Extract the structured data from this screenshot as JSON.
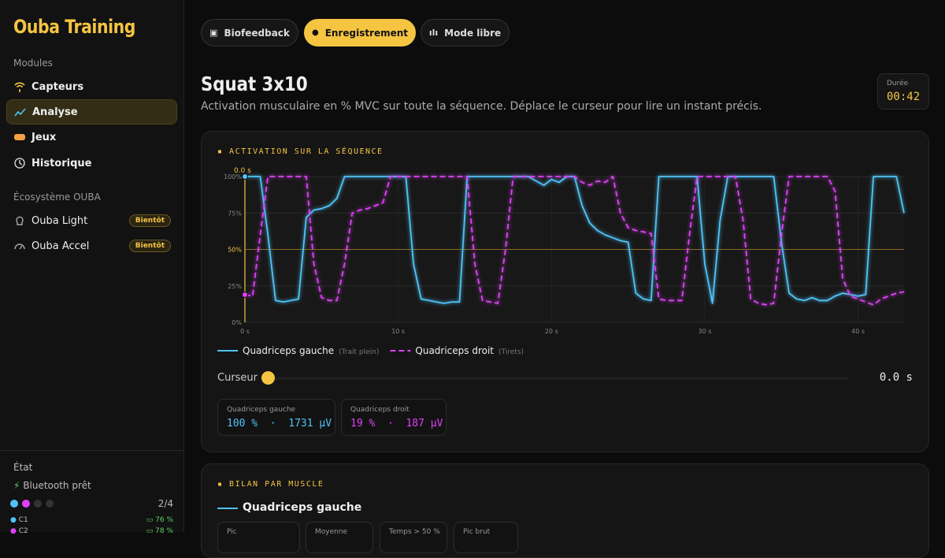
{
  "sidebar": {
    "brand": "Ouba Training",
    "modules_label": "Modules",
    "modules": [
      "Capteurs",
      "Analyse",
      "Jeux",
      "Historique"
    ],
    "ecosystem_label": "Écosystème OUBA",
    "ecosystem": [
      {
        "label": "Ouba Light",
        "badge": "Bientôt"
      },
      {
        "label": "Ouba Accel",
        "badge": "Bientôt"
      }
    ],
    "status": {
      "label": "État",
      "bluetooth": "Bluetooth prêt",
      "count": "2/4",
      "devices": [
        {
          "name": "C1",
          "battery": "76 %"
        },
        {
          "name": "C2",
          "battery": "78 %"
        }
      ]
    }
  },
  "tabs": [
    "Biofeedback",
    "Enregistrement",
    "Mode libre"
  ],
  "header": {
    "title": "Squat 3x10",
    "description": "Activation musculaire en % MVC sur toute la séquence. Déplace le curseur pour lire un instant précis.",
    "duration_label": "Durée",
    "duration": "00:42"
  },
  "chart_data": {
    "type": "line",
    "title": "ACTIVATION SUR LA SÉQUENCE",
    "annotation": "0.0 s",
    "cursor_x": 0,
    "threshold": 50,
    "grid": true,
    "xlim": [
      0,
      43
    ],
    "ylim": [
      0,
      100
    ],
    "xticks": [
      {
        "value": 0,
        "label": "0 s"
      },
      {
        "value": 10,
        "label": "10 s"
      },
      {
        "value": 20,
        "label": "20 s"
      },
      {
        "value": 30,
        "label": "30 s"
      },
      {
        "value": 40,
        "label": "40 s"
      }
    ],
    "yticks": [
      {
        "value": 0,
        "label": "0%"
      },
      {
        "value": 25,
        "label": "25%"
      },
      {
        "value": 50,
        "label": "50%"
      },
      {
        "value": 75,
        "label": "75%"
      },
      {
        "value": 100,
        "label": "100%"
      }
    ],
    "x": [
      0,
      0.5,
      1,
      1.5,
      2,
      2.5,
      3,
      3.5,
      4,
      4.5,
      5,
      5.5,
      6,
      6.5,
      7,
      7.5,
      8,
      8.5,
      9,
      9.5,
      10,
      10.5,
      11,
      11.5,
      12,
      12.5,
      13,
      13.5,
      14,
      14.5,
      15,
      15.5,
      16,
      16.5,
      17,
      17.5,
      18,
      18.5,
      19,
      19.5,
      20,
      20.5,
      21,
      21.5,
      22,
      22.5,
      23,
      23.5,
      24,
      24.5,
      25,
      25.5,
      26,
      26.5,
      27,
      27.5,
      28,
      28.5,
      29,
      29.5,
      30,
      30.5,
      31,
      31.5,
      32,
      32.5,
      33,
      33.5,
      34,
      34.5,
      35,
      35.5,
      36,
      36.5,
      37,
      37.5,
      38,
      38.5,
      39,
      39.5,
      40,
      40.5,
      41,
      41.5,
      42,
      42.5,
      43
    ],
    "series": [
      {
        "name": "Quadriceps gauche",
        "note": "(Trait plein)",
        "color": "#4fc3f7",
        "dashed": false,
        "values": [
          100,
          100,
          100,
          60,
          15,
          14,
          15,
          16,
          72,
          77,
          78,
          80,
          85,
          100,
          100,
          100,
          100,
          100,
          100,
          100,
          100,
          100,
          40,
          16,
          15,
          14,
          13,
          14,
          14,
          100,
          100,
          100,
          100,
          100,
          100,
          100,
          100,
          100,
          97,
          94,
          98,
          96,
          100,
          100,
          80,
          68,
          63,
          60,
          58,
          56,
          55,
          20,
          16,
          15,
          100,
          100,
          100,
          100,
          100,
          100,
          40,
          13,
          70,
          100,
          100,
          100,
          100,
          100,
          100,
          100,
          55,
          20,
          16,
          15,
          17,
          15,
          15,
          18,
          20,
          19,
          18,
          19,
          100,
          100,
          100,
          100,
          75
        ]
      },
      {
        "name": "Quadriceps droit",
        "note": "(Tirets)",
        "color": "#e040fb",
        "dashed": true,
        "values": [
          19,
          18,
          60,
          100,
          100,
          100,
          100,
          100,
          100,
          40,
          17,
          15,
          15,
          40,
          75,
          77,
          78,
          80,
          82,
          100,
          100,
          100,
          100,
          100,
          100,
          100,
          100,
          100,
          100,
          100,
          40,
          15,
          14,
          13,
          50,
          100,
          100,
          100,
          100,
          100,
          100,
          100,
          100,
          100,
          96,
          94,
          97,
          96,
          100,
          75,
          65,
          63,
          62,
          61,
          16,
          15,
          15,
          15,
          60,
          100,
          100,
          100,
          100,
          100,
          100,
          70,
          16,
          13,
          12,
          13,
          60,
          100,
          100,
          100,
          100,
          100,
          100,
          90,
          30,
          18,
          16,
          14,
          12,
          16,
          18,
          20,
          21
        ]
      }
    ]
  },
  "cursor": {
    "label": "Curseur",
    "value": "0.0 s"
  },
  "readouts": [
    {
      "label": "Quadriceps gauche",
      "value": "100 %  ·  1731 µV"
    },
    {
      "label": "Quadriceps droit",
      "value": "19 %  ·  187 µV"
    }
  ],
  "summary": {
    "title": "BILAN PAR MUSCLE",
    "muscle": "Quadriceps gauche",
    "stats": [
      "Pic",
      "Moyenne",
      "Temps > 50 %",
      "Pic brut"
    ]
  }
}
